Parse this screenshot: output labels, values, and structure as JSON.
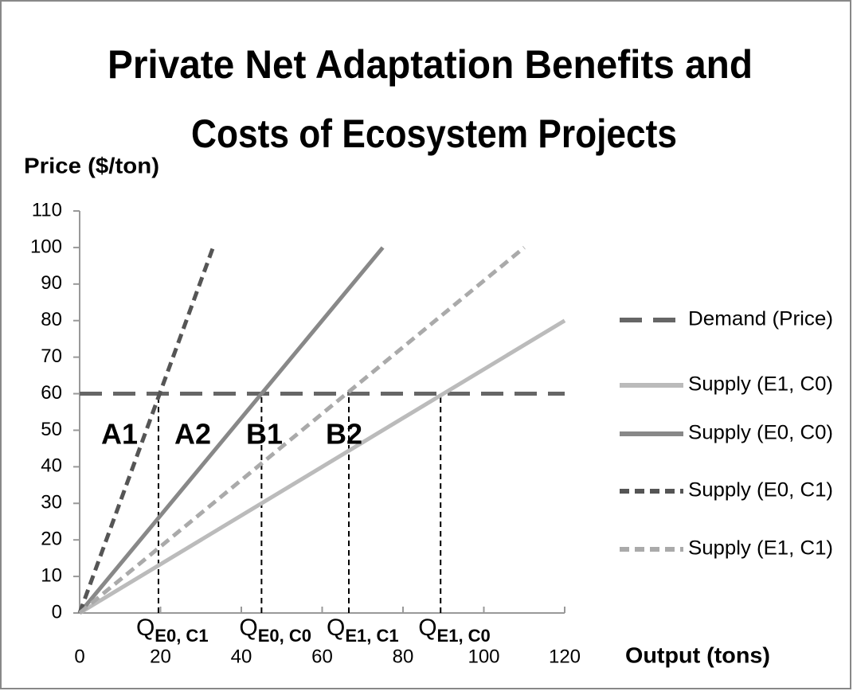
{
  "chart_data": {
    "type": "line",
    "title": [
      "Private  Net Adaptation Benefits and",
      "Costs of Ecosystem Projects"
    ],
    "y_label": "Price ($/ton)",
    "x_label": "Output (tons)",
    "xlim": [
      0,
      120
    ],
    "xticks": [
      0,
      20,
      40,
      60,
      80,
      100,
      120
    ],
    "ylim": [
      0,
      110
    ],
    "yticks": [
      0,
      10,
      20,
      30,
      40,
      50,
      60,
      70,
      80,
      90,
      100,
      110
    ],
    "legend": "right",
    "series": [
      {
        "name": "Demand (Price)",
        "color": "#666666",
        "dash": "long",
        "x": [
          0,
          120
        ],
        "values": [
          60,
          60
        ]
      },
      {
        "name": "Supply (E1, C0)",
        "color": "#bbbbbb",
        "dash": "solid",
        "x": [
          0,
          120
        ],
        "values": [
          0,
          80
        ]
      },
      {
        "name": "Supply (E0, C0)",
        "color": "#888888",
        "dash": "solid",
        "x": [
          0,
          75
        ],
        "values": [
          0,
          100
        ]
      },
      {
        "name": "Supply (E0, C1)",
        "color": "#555555",
        "dash": "short",
        "x": [
          0,
          33
        ],
        "values": [
          0,
          100
        ]
      },
      {
        "name": "Supply (E1, C1)",
        "color": "#aaaaaa",
        "dash": "short",
        "x": [
          0,
          110
        ],
        "values": [
          0,
          100
        ]
      }
    ],
    "vlines": [
      {
        "x": 19.5,
        "top": 60,
        "label": "Q",
        "sub": "E0, C1"
      },
      {
        "x": 45,
        "top": 60,
        "label": "Q",
        "sub": "E0, C0"
      },
      {
        "x": 66.6,
        "top": 60,
        "label": "Q",
        "sub": "E1, C1"
      },
      {
        "x": 89.3,
        "top": 60,
        "label": "Q",
        "sub": "E1, C0"
      }
    ],
    "annotations": [
      "A1",
      "A2",
      "B1",
      "B2"
    ]
  }
}
